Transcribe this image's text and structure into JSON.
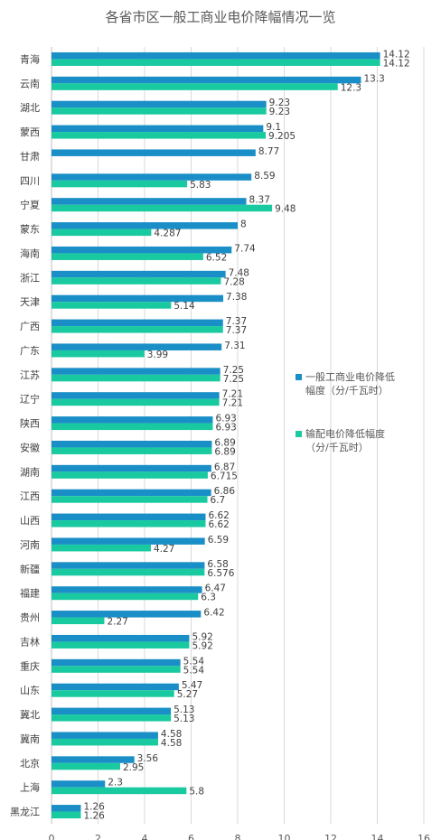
{
  "chart_data": {
    "type": "bar",
    "orientation": "horizontal",
    "title": "各省市区一般工商业电价降幅情况一览",
    "categories": [
      "青海",
      "云南",
      "湖北",
      "蒙西",
      "甘肃",
      "四川",
      "宁夏",
      "蒙东",
      "海南",
      "浙江",
      "天津",
      "广西",
      "广东",
      "江苏",
      "辽宁",
      "陕西",
      "安徽",
      "湖南",
      "江西",
      "山西",
      "河南",
      "新疆",
      "福建",
      "贵州",
      "吉林",
      "重庆",
      "山东",
      "冀北",
      "冀南",
      "北京",
      "上海",
      "黑龙江"
    ],
    "series": [
      {
        "name": "一般工商业电价降低幅度（分/千瓦时）",
        "color": "#1a8fc7",
        "values": [
          14.12,
          13.3,
          9.23,
          9.1,
          8.77,
          8.59,
          8.37,
          8,
          7.74,
          7.48,
          7.38,
          7.37,
          7.31,
          7.25,
          7.21,
          6.93,
          6.89,
          6.87,
          6.86,
          6.62,
          6.59,
          6.58,
          6.47,
          6.42,
          5.92,
          5.54,
          5.47,
          5.13,
          4.58,
          3.56,
          2.3,
          1.26
        ]
      },
      {
        "name": "输配电价降低幅度（分/千瓦时）",
        "color": "#19c9a0",
        "values": [
          14.12,
          12.3,
          9.23,
          9.205,
          null,
          5.83,
          9.48,
          4.287,
          6.52,
          7.28,
          5.14,
          7.37,
          3.99,
          7.25,
          7.21,
          6.93,
          6.89,
          6.715,
          6.7,
          6.62,
          4.27,
          6.576,
          6.3,
          2.27,
          5.92,
          5.54,
          5.27,
          5.13,
          4.58,
          2.95,
          5.8,
          1.26
        ]
      }
    ],
    "xlim": [
      0,
      16
    ],
    "xticks": [
      "0",
      "2",
      "4",
      "6",
      "8",
      "10",
      "12",
      "14",
      "16"
    ],
    "grid": "vertical",
    "legend_position": "right"
  },
  "legend": {
    "series1_line1": "一般工商业电价降低",
    "series1_line2": "幅度（分/千瓦时）",
    "series2_line1": "输配电价降低幅度",
    "series2_line2": "（分/千瓦时）"
  }
}
